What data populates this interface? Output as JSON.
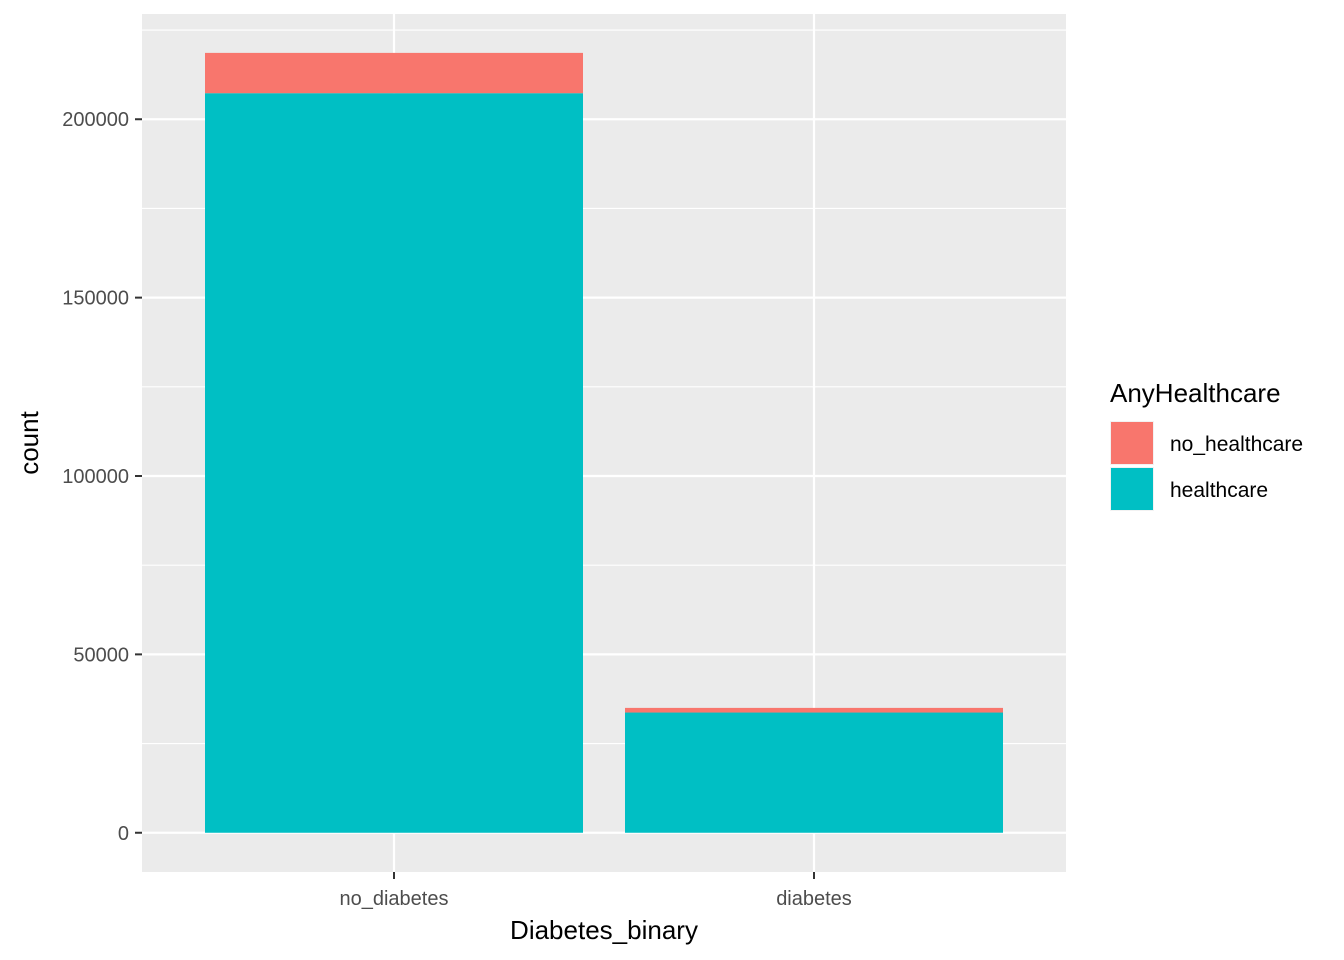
{
  "chart_data": {
    "type": "bar",
    "stacked": true,
    "title": "",
    "xlabel": "Diabetes_binary",
    "ylabel": "count",
    "categories": [
      "no_diabetes",
      "diabetes"
    ],
    "series": [
      {
        "name": "healthcare",
        "values": [
          207300,
          33700
        ],
        "color": "#00BFC4"
      },
      {
        "name": "no_healthcare",
        "values": [
          11300,
          1300
        ],
        "color": "#F8766D"
      }
    ],
    "ylim": [
      -11000,
      229500
    ],
    "yticks": [
      0,
      50000,
      100000,
      150000,
      200000
    ],
    "ytick_labels": [
      "0",
      "50000",
      "100000",
      "150000",
      "200000"
    ],
    "grid": true,
    "panel_background": "#EBEBEB",
    "grid_color": "#FFFFFF",
    "legend": {
      "title": "AnyHealthcare",
      "position": "right",
      "entries": [
        {
          "label": "no_healthcare",
          "color": "#F8766D"
        },
        {
          "label": "healthcare",
          "color": "#00BFC4"
        }
      ]
    }
  }
}
